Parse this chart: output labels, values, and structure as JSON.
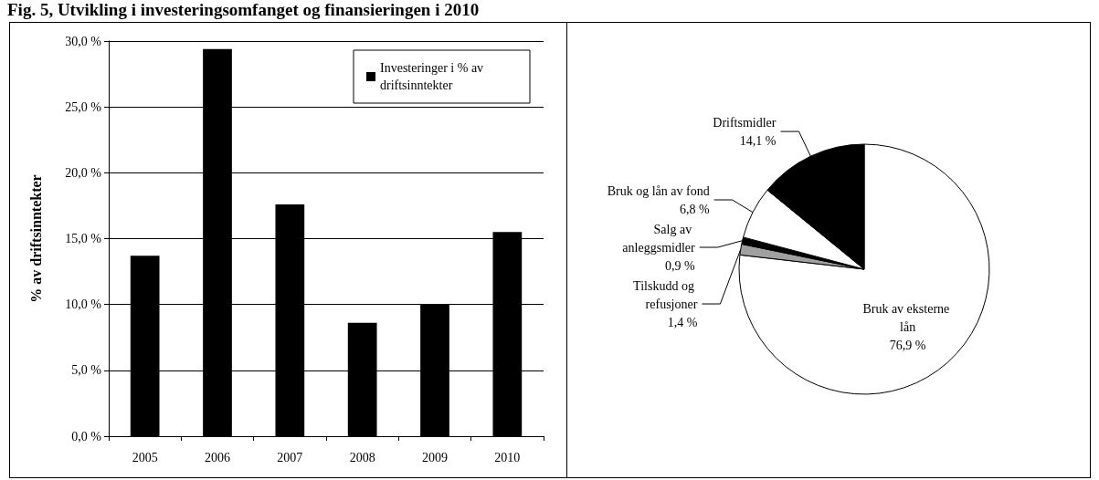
{
  "chart_data": [
    {
      "type": "bar",
      "title": "Fig. 5, Utvikling i investeringsomfanget og finansieringen i 2010",
      "ylabel": "% av driftsinntekter",
      "categories": [
        "2005",
        "2006",
        "2007",
        "2008",
        "2009",
        "2010"
      ],
      "series": [
        {
          "name": "Investeringer i % av driftsinntekter",
          "color": "#000000",
          "values": [
            13.7,
            29.4,
            17.6,
            8.6,
            10.0,
            15.5
          ]
        }
      ],
      "ylim": [
        0,
        30
      ],
      "yticks": [
        {
          "value": 0,
          "label": "0,0 %"
        },
        {
          "value": 5,
          "label": "5,0 %"
        },
        {
          "value": 10,
          "label": "10,0 %"
        },
        {
          "value": 15,
          "label": "15,0 %"
        },
        {
          "value": 20,
          "label": "20,0 %"
        },
        {
          "value": 25,
          "label": "25,0 %"
        },
        {
          "value": 30,
          "label": "30,0 %"
        }
      ],
      "grid": "y",
      "legend": "top right"
    },
    {
      "type": "pie",
      "categories": [
        "Bruk av eksterne lån",
        "Tilskudd og refusjoner",
        "Salg av anleggsmidler",
        "Bruk og lån av fond",
        "Driftsmidler"
      ],
      "values": [
        76.9,
        1.4,
        0.9,
        6.8,
        14.1
      ],
      "value_labels": [
        "76,9 %",
        "1,4 %",
        "0,9 %",
        "6,8 %",
        "14,1 %"
      ],
      "colors": [
        "#ffffff",
        "#a0a0a0",
        "#000000",
        "#ffffff",
        "#000000"
      ]
    }
  ]
}
